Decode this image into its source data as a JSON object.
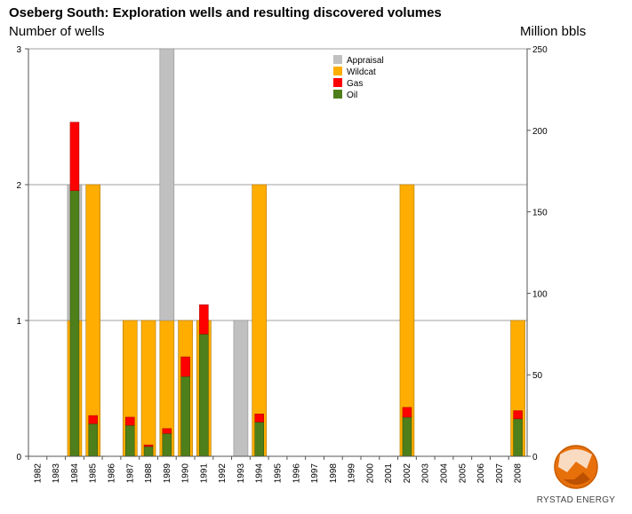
{
  "chart_data": {
    "type": "bar",
    "title": "Oseberg South: Exploration wells and resulting discovered volumes",
    "ylabel_left": "Number of wells",
    "ylabel_right": "Million bbls",
    "xlabel": "",
    "ylim_left": [
      0,
      3
    ],
    "ylim_right": [
      0,
      250
    ],
    "yticks_left": [
      "0",
      "1",
      "2",
      "3"
    ],
    "yticks_right": [
      "0",
      "50",
      "100",
      "150",
      "200",
      "250"
    ],
    "categories": [
      "1982",
      "1983",
      "1984",
      "1985",
      "1986",
      "1987",
      "1988",
      "1989",
      "1990",
      "1991",
      "1992",
      "1993",
      "1994",
      "1995",
      "1996",
      "1997",
      "1998",
      "1999",
      "2000",
      "2001",
      "2002",
      "2003",
      "2004",
      "2005",
      "2006",
      "2007",
      "2008"
    ],
    "series": [
      {
        "name": "Appraisal",
        "axis": "left",
        "color": "#c0c0c0",
        "values": [
          0,
          0,
          1,
          0,
          0,
          0,
          0,
          2,
          0,
          0,
          0,
          1,
          0,
          0,
          0,
          0,
          0,
          0,
          0,
          0,
          0,
          0,
          0,
          0,
          0,
          0,
          0
        ]
      },
      {
        "name": "Wildcat",
        "axis": "left",
        "color": "#ffad00",
        "values": [
          0,
          0,
          1,
          2,
          0,
          1,
          1,
          1,
          1,
          1,
          0,
          0,
          2,
          0,
          0,
          0,
          0,
          0,
          0,
          0,
          2,
          0,
          0,
          0,
          0,
          0,
          1
        ]
      },
      {
        "name": "Gas",
        "axis": "right",
        "color": "#ff0000",
        "values": [
          0,
          0,
          42,
          5,
          0,
          5,
          1,
          3,
          12,
          18,
          0,
          0,
          5,
          0,
          0,
          0,
          0,
          0,
          0,
          0,
          6,
          0,
          0,
          0,
          0,
          0,
          5
        ]
      },
      {
        "name": "Oil",
        "axis": "right",
        "color": "#4e7f1a",
        "values": [
          0,
          0,
          163,
          20,
          0,
          19,
          6,
          14,
          49,
          75,
          0,
          0,
          21,
          0,
          0,
          0,
          0,
          0,
          0,
          0,
          24,
          0,
          0,
          0,
          0,
          0,
          23
        ]
      }
    ],
    "legend_position": "top-center",
    "grid": true
  },
  "logo": {
    "text": "RYSTAD ENERGY"
  }
}
